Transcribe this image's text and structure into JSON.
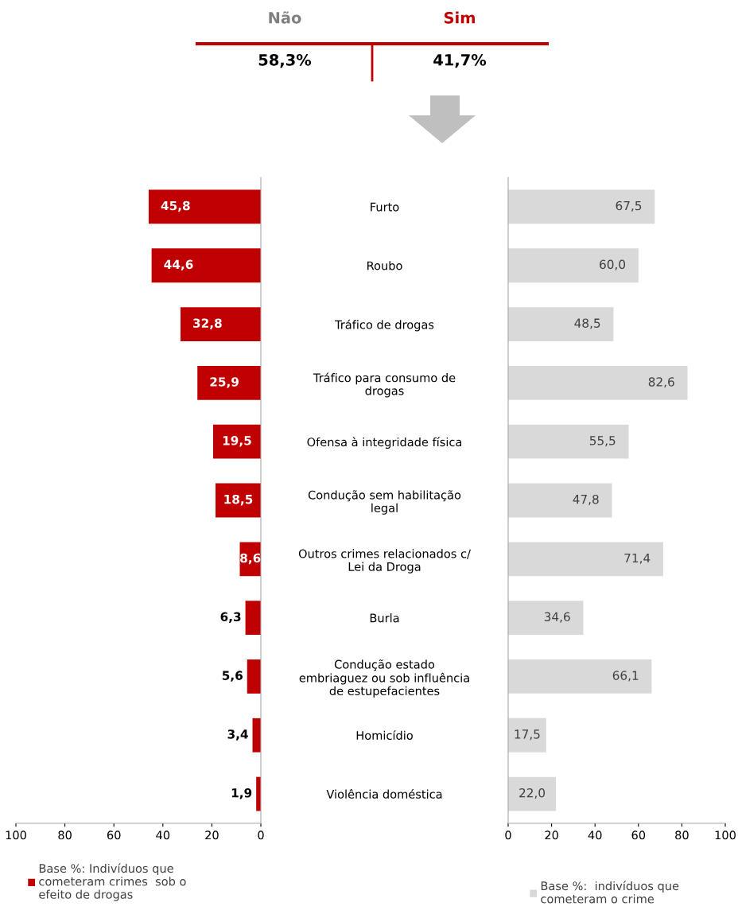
{
  "chart_data": [
    {
      "type": "other",
      "categories": [
        "Não",
        "Sim"
      ],
      "colors": [
        "#7f7f7f",
        "#c00000"
      ],
      "annotations": [
        "58,3%",
        "41,7%"
      ],
      "color": "#c00000"
    },
    {
      "type": "bar",
      "orientation": "horizontal",
      "categories": [
        "Furto",
        "Roubo",
        "Tráfico de drogas",
        "Tráfico para consumo de\ndrogas",
        "Ofensa à integridade física",
        "Condução sem habilitação\nlegal",
        "Outros crimes relacionados c/\nLei da Droga",
        "Burla",
        "Condução estado\nembriaguez ou sob influência\nde estupefacientes",
        "Homicídio",
        "Violência doméstica"
      ],
      "series": [
        {
          "name": "Base %: Indivíduos que\ncometeram crimes  sob o\nefeito de drogas",
          "color": "#c00000",
          "values": [
            45.8,
            44.6,
            32.8,
            25.9,
            19.5,
            18.5,
            8.6,
            6.3,
            5.6,
            3.4,
            1.9
          ],
          "value_labels": [
            "45,8",
            "44,6",
            "32,8",
            "25,9",
            "19,5",
            "18,5",
            "8,6",
            "6,3",
            "5,6",
            "3,4",
            "1,9"
          ]
        }
      ],
      "xlim": [
        100,
        0
      ],
      "xticks": [
        100,
        80,
        60,
        40,
        20,
        0
      ],
      "legend": "bottom"
    },
    {
      "type": "bar",
      "orientation": "horizontal",
      "categories": [
        null,
        null,
        null,
        null,
        null,
        null,
        null,
        null,
        null,
        null,
        null
      ],
      "series": [
        {
          "name": "Base %:  indivíduos que\ncometeram o crime",
          "color": "#d9d9d9",
          "values": [
            67.5,
            60.0,
            48.5,
            82.6,
            55.5,
            47.8,
            71.4,
            34.6,
            66.1,
            17.5,
            22.0
          ],
          "value_labels": [
            "67,5",
            "60,0",
            "48,5",
            "82,6",
            "55,5",
            "47,8",
            "71,4",
            "34,6",
            "66,1",
            "17,5",
            "22,0"
          ]
        }
      ],
      "xlim": [
        0,
        100
      ],
      "xticks": [
        0,
        20,
        40,
        60,
        80,
        100
      ],
      "legend": "bottom"
    }
  ]
}
